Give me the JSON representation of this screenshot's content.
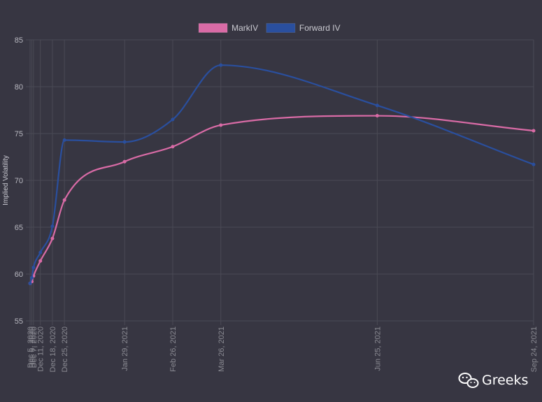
{
  "colors": {
    "background": "#373642",
    "grid": "#4a4a55",
    "markiv": "#d96ba6",
    "forward_iv": "#2a4f9e"
  },
  "watermark": {
    "icon": "wechat-icon",
    "text": "Greeks"
  },
  "chart_data": {
    "type": "line",
    "title": "",
    "xlabel": "",
    "ylabel": "Implied Volatility",
    "ylim": [
      55,
      85
    ],
    "yticks": [
      55,
      60,
      65,
      70,
      75,
      80,
      85
    ],
    "grid": true,
    "legend_position": "top-center",
    "x_dates": [
      "2020-12-05",
      "2020-12-06",
      "2020-12-07",
      "2020-12-11",
      "2020-12-18",
      "2020-12-25",
      "2021-01-29",
      "2021-02-26",
      "2021-03-26",
      "2021-06-25",
      "2021-09-24"
    ],
    "x_tick_labels": [
      "Dec 5, 2020",
      "Dec 6, 2020",
      "Dec 7, 2020",
      "Dec 11, 2020",
      "Dec 18, 2020",
      "Dec 25, 2020",
      "Jan 29, 2021",
      "Feb 26, 2021",
      "Mar 26, 2021",
      "Jun 25, 2021",
      "Sep 24, 2021"
    ],
    "series": [
      {
        "name": "MarkIV",
        "color": "#d96ba6",
        "values": [
          59.0,
          59.2,
          59.8,
          61.4,
          63.8,
          67.9,
          72.0,
          73.6,
          75.9,
          76.9,
          75.3
        ]
      },
      {
        "name": "Forward IV",
        "color": "#2a4f9e",
        "values": [
          59.0,
          59.6,
          60.7,
          62.3,
          65.1,
          74.3,
          74.1,
          76.5,
          82.3,
          78.0,
          71.7
        ]
      }
    ]
  }
}
